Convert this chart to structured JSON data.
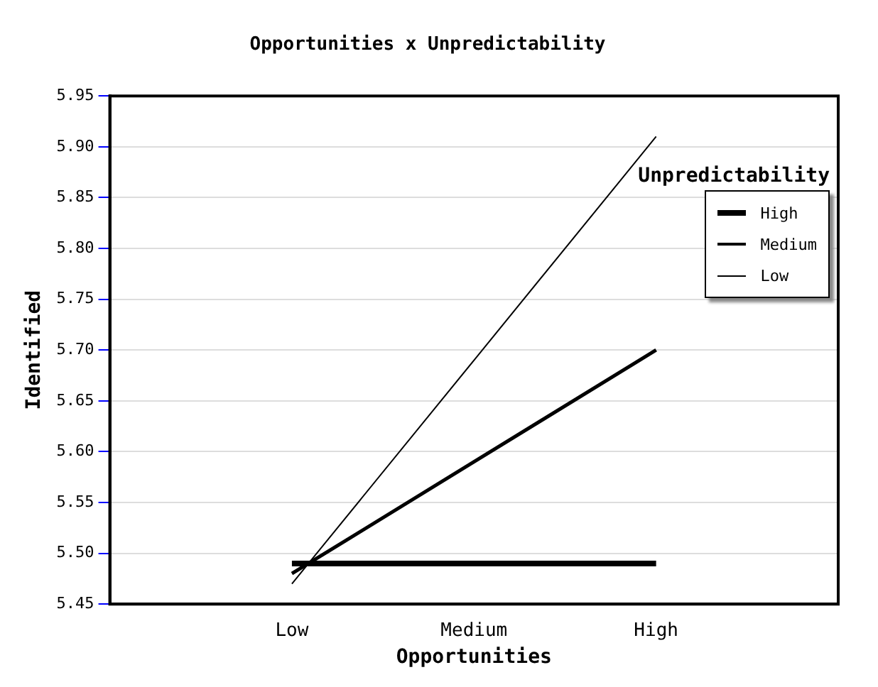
{
  "chart_data": {
    "type": "line",
    "title": "Opportunities x Unpredictability",
    "xlabel": "Opportunities",
    "ylabel": "Identified",
    "legend_title": "Unpredictability",
    "categories": [
      null,
      "Low",
      "Medium",
      "High",
      null
    ],
    "series": [
      {
        "name": "High",
        "color": "#000000",
        "values": [
          null,
          5.49,
          5.49,
          5.49,
          null
        ]
      },
      {
        "name": "Medium",
        "color": "#000000",
        "values": [
          null,
          5.48,
          5.59,
          5.7,
          null
        ]
      },
      {
        "name": "Low",
        "color": "#000000",
        "values": [
          null,
          5.47,
          5.69,
          5.91,
          null
        ]
      }
    ],
    "ylim": [
      5.45,
      5.95
    ],
    "yticks": [
      5.45,
      {
        "value": 5.5,
        "label": "5.50"
      },
      5.55,
      {
        "value": 5.6,
        "label": "5.60"
      },
      5.65,
      {
        "value": 5.7,
        "label": "5.70"
      },
      5.75,
      {
        "value": 5.8,
        "label": "5.80"
      },
      5.85,
      {
        "value": 5.9,
        "label": "5.90"
      },
      5.95
    ],
    "grid": "y",
    "legend": "top right",
    "marker": "none",
    "line_style": "solid"
  }
}
